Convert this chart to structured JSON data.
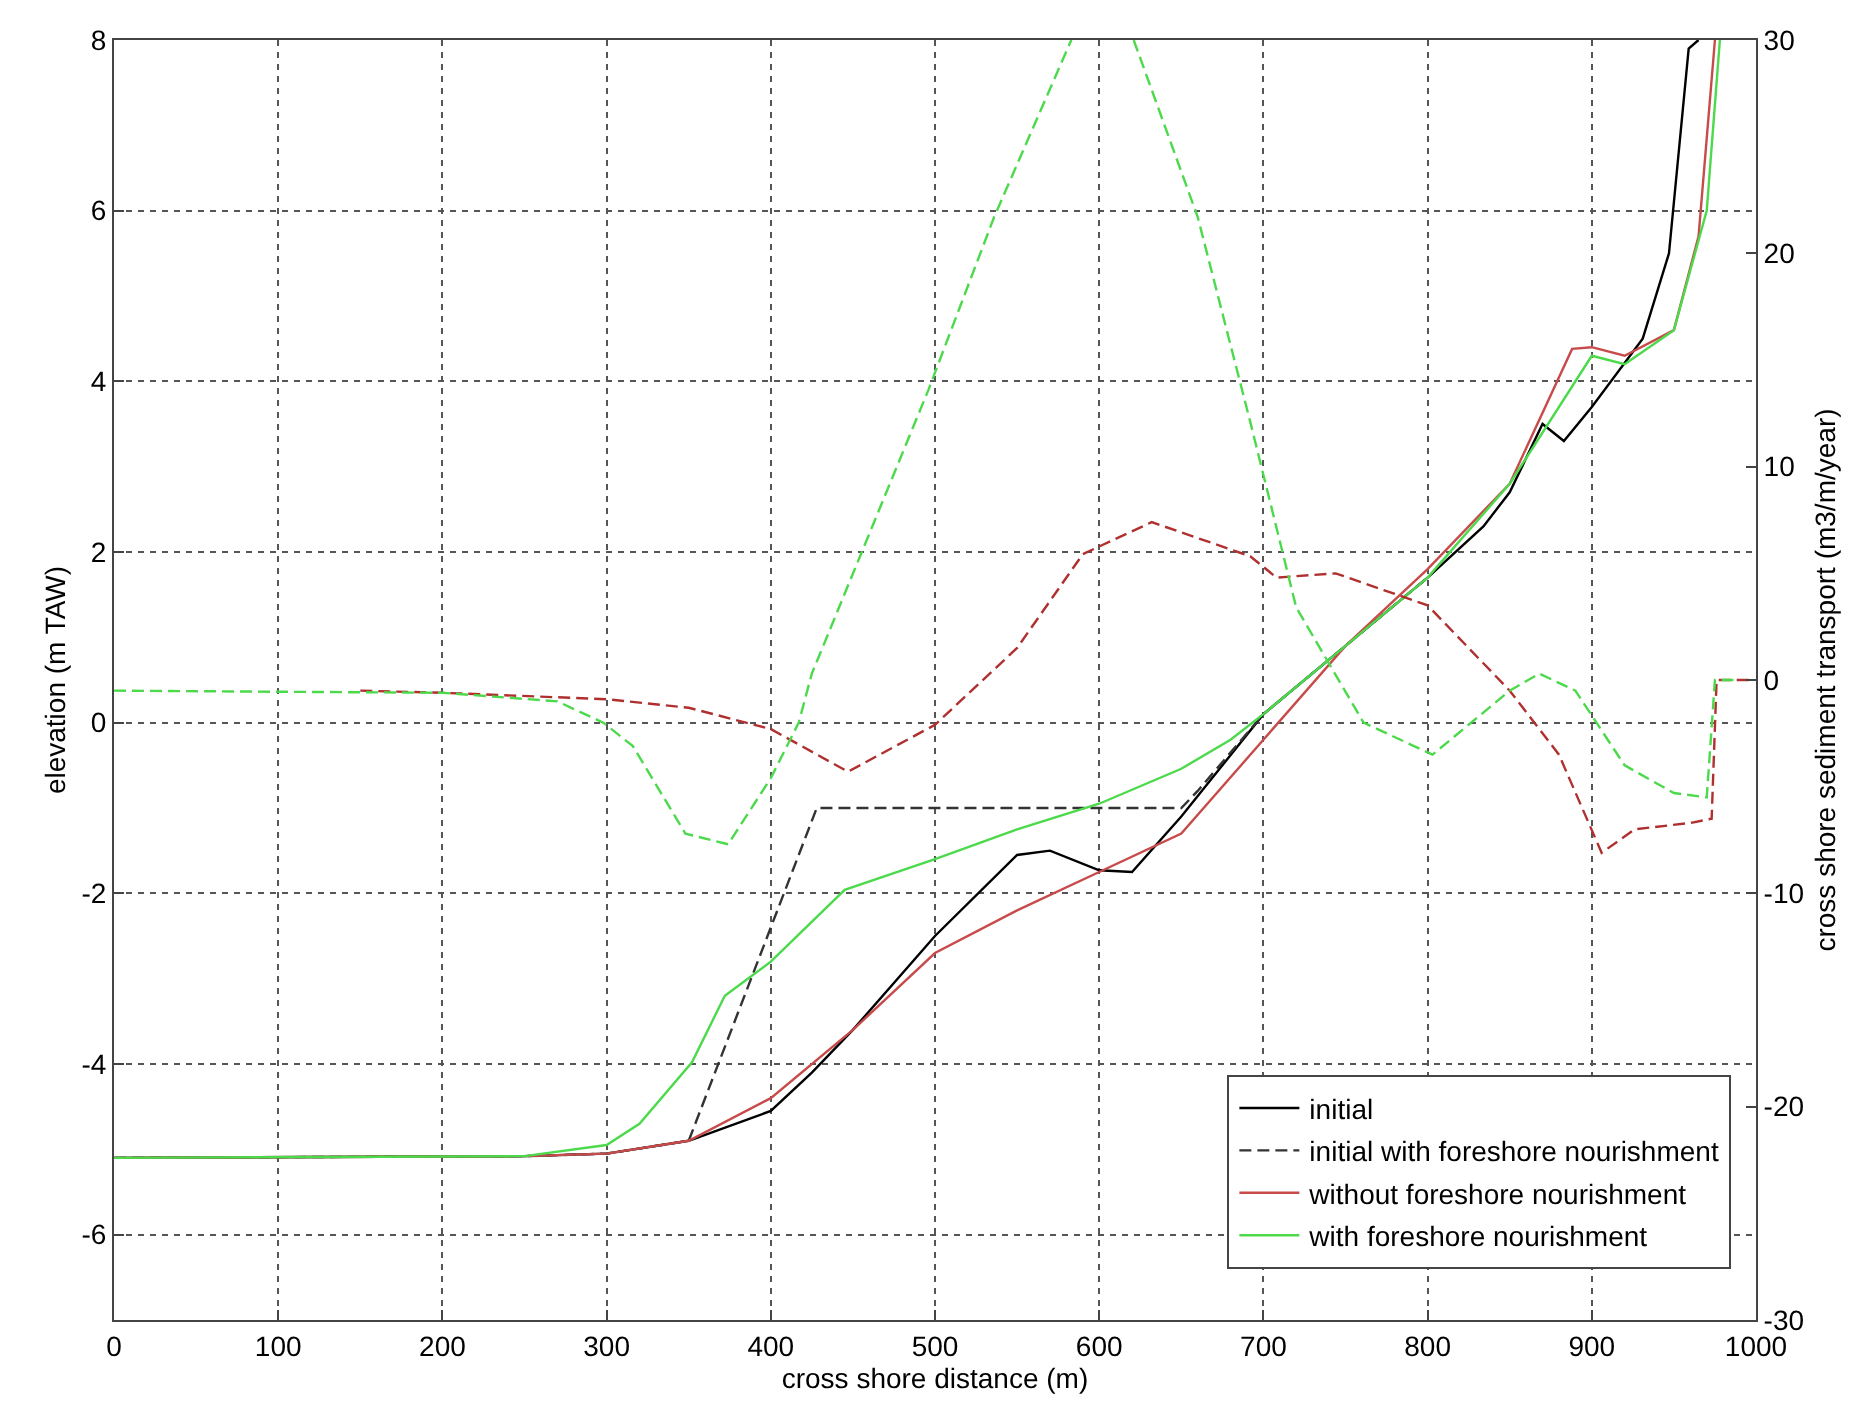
{
  "chart_data": {
    "type": "line",
    "xlabel": "cross shore distance (m)",
    "ylabel": "elevation (m TAW)",
    "y2label": "cross shore sediment transport (m3/m/year)",
    "xlim": [
      0,
      1000
    ],
    "xticks": [
      0,
      100,
      200,
      300,
      400,
      500,
      600,
      700,
      800,
      900,
      1000
    ],
    "ylim": [
      -7,
      8
    ],
    "yticks": [
      -6,
      -4,
      -2,
      0,
      2,
      4,
      6,
      8
    ],
    "y2lim": [
      -30,
      30
    ],
    "y2ticks": [
      -30,
      -20,
      -10,
      0,
      10,
      20,
      30
    ],
    "grid": true,
    "legend": "bottom right",
    "series": [
      {
        "name": "initial",
        "color": "#000000",
        "line_style": "solid",
        "x": [
          0,
          250,
          300,
          350,
          400,
          425,
          450,
          500,
          550,
          570,
          600,
          620,
          650,
          700,
          750,
          800,
          834,
          850,
          870,
          883,
          900,
          931,
          947,
          959,
          965
        ],
        "values": [
          -5.1,
          -5.08,
          -5.05,
          -4.9,
          -4.55,
          -4.1,
          -3.6,
          -2.5,
          -1.55,
          -1.5,
          -1.73,
          -1.75,
          -1.1,
          0.1,
          0.9,
          1.7,
          2.3,
          2.7,
          3.5,
          3.3,
          3.7,
          4.5,
          5.5,
          7.9,
          8
        ]
      },
      {
        "name": "initial with foreshore nourishment",
        "color": "#333333",
        "line_style": "dashed",
        "x": [
          0,
          250,
          300,
          350,
          428,
          650,
          660,
          700,
          750,
          800
        ],
        "values": [
          -5.1,
          -5.08,
          -5.05,
          -4.9,
          -1.0,
          -1.0,
          -0.8,
          0.1,
          0.9,
          1.7
        ]
      },
      {
        "name": "without foreshore nourishment",
        "color": "#c84b4b",
        "line_style": "solid",
        "x": [
          0,
          250,
          300,
          350,
          400,
          450,
          500,
          550,
          600,
          650,
          700,
          750,
          800,
          850,
          888,
          900,
          920,
          950,
          965,
          975
        ],
        "values": [
          -5.1,
          -5.08,
          -5.05,
          -4.9,
          -4.4,
          -3.6,
          -2.7,
          -2.2,
          -1.75,
          -1.3,
          -0.2,
          0.9,
          1.8,
          2.8,
          4.38,
          4.4,
          4.3,
          4.6,
          5.7,
          8
        ]
      },
      {
        "name": "with foreshore nourishment",
        "color": "#4cd94c",
        "line_style": "solid",
        "x": [
          0,
          250,
          300,
          320,
          352,
          372,
          400,
          445,
          500,
          550,
          600,
          650,
          680,
          700,
          750,
          800,
          850,
          900,
          920,
          950,
          970,
          978
        ],
        "values": [
          -5.1,
          -5.08,
          -4.95,
          -4.7,
          -3.98,
          -3.2,
          -2.8,
          -1.96,
          -1.6,
          -1.25,
          -0.95,
          -0.54,
          -0.2,
          0.1,
          0.9,
          1.7,
          2.8,
          4.3,
          4.2,
          4.6,
          6.0,
          8
        ]
      },
      {
        "color": "#b03030",
        "line_style": "dashed",
        "axis": "y2",
        "x": [
          150,
          200,
          300,
          350,
          400,
          447,
          500,
          550,
          590,
          632,
          692,
          708,
          744,
          800,
          850,
          880,
          906,
          926,
          960,
          973,
          976,
          998
        ],
        "values": [
          -0.5,
          -0.6,
          -0.9,
          -1.3,
          -2.3,
          -4.3,
          -2.1,
          1.5,
          5.9,
          7.4,
          5.8,
          4.8,
          5.0,
          3.5,
          -0.5,
          -3.5,
          -8.1,
          -7.0,
          -6.7,
          -6.5,
          0,
          0
        ]
      },
      {
        "color": "#4cd94c",
        "line_style": "dashed",
        "axis": "y2",
        "x": [
          0,
          200,
          270,
          298,
          316,
          348,
          374,
          400,
          417,
          425,
          496,
          536,
          583,
          600,
          621,
          660,
          692,
          720,
          761,
          803,
          850,
          868,
          890,
          920,
          950,
          970,
          975,
          990
        ],
        "values": [
          -0.5,
          -0.6,
          -1.0,
          -2.0,
          -3.1,
          -7.2,
          -7.7,
          -4.6,
          -2,
          0.3,
          13.6,
          21.7,
          30,
          null,
          30,
          21.7,
          12.1,
          3.4,
          -2.0,
          -3.5,
          -0.5,
          0.3,
          -0.5,
          -4.0,
          -5.3,
          -5.5,
          0,
          0
        ]
      }
    ]
  }
}
